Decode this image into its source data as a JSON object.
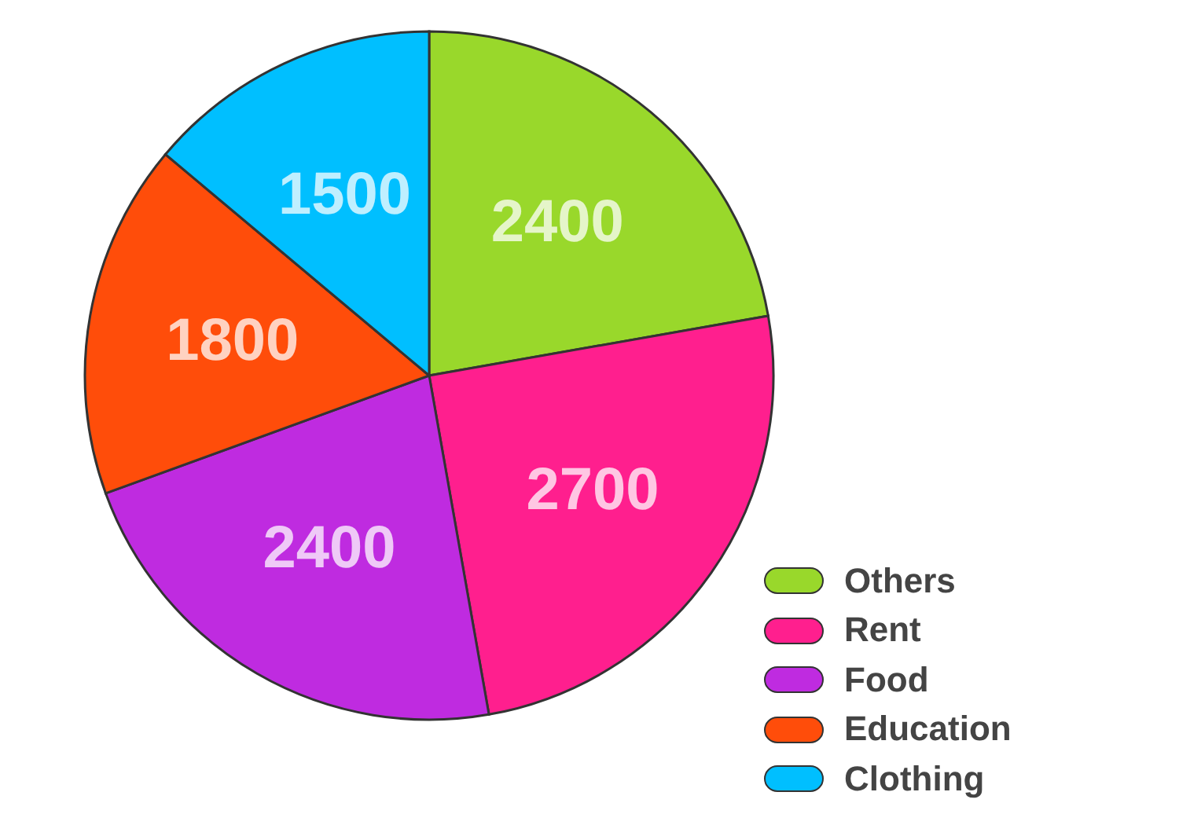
{
  "chart_data": {
    "type": "pie",
    "categories": [
      "Others",
      "Rent",
      "Food",
      "Education",
      "Clothing"
    ],
    "values": [
      2400,
      2700,
      2400,
      1800,
      1500
    ],
    "colors": [
      "#99d82b",
      "#ff1f8e",
      "#bf2be0",
      "#ff4d0a",
      "#00bfff"
    ],
    "data_labels": true,
    "legend": "bottom right"
  }
}
